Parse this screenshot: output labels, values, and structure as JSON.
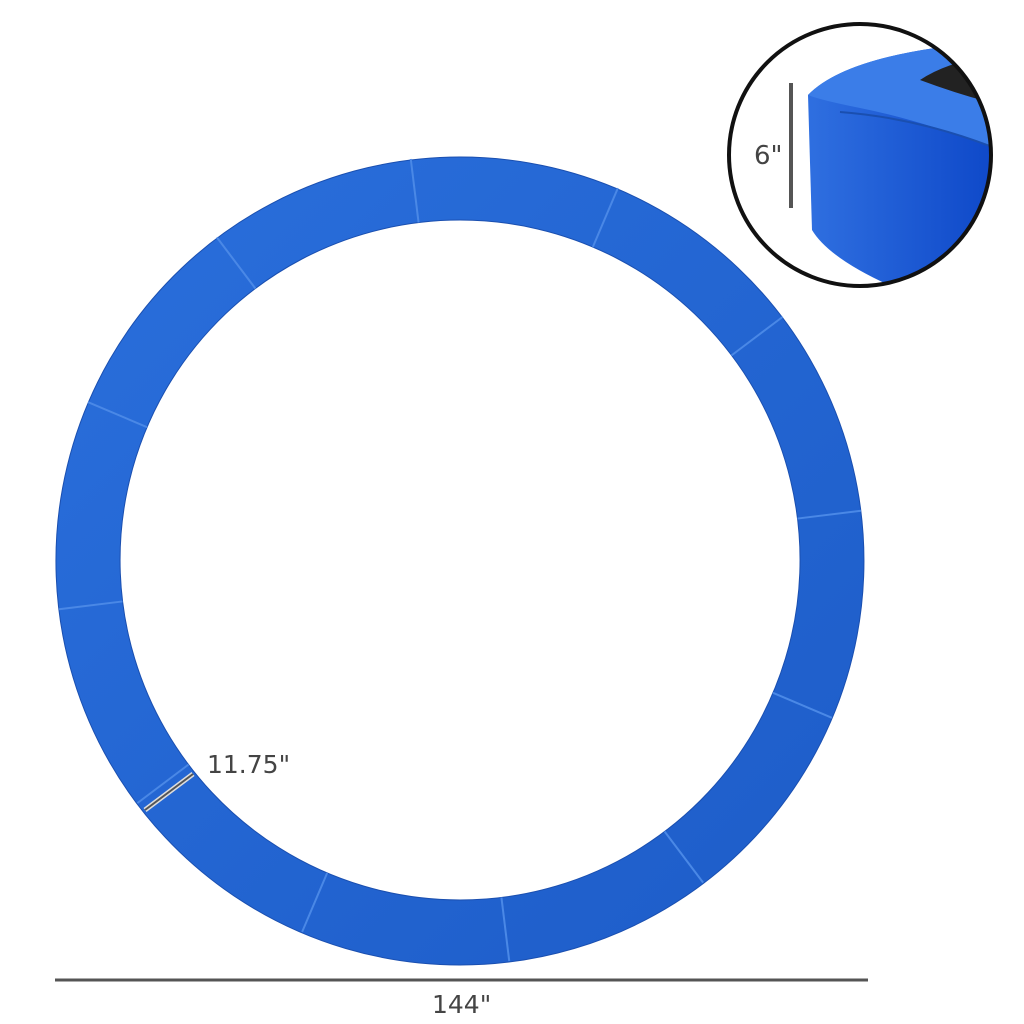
{
  "product": {
    "pad_color": "#2266d4",
    "pad_color_dark": "#1a55c0",
    "segment_count": 12
  },
  "dimensions": {
    "diameter_label": "144\"",
    "width_label": "11.75\"",
    "height_label": "6\""
  },
  "colors": {
    "dimension_line": "#555555",
    "inset_border": "#111111",
    "mat": "#222222"
  }
}
